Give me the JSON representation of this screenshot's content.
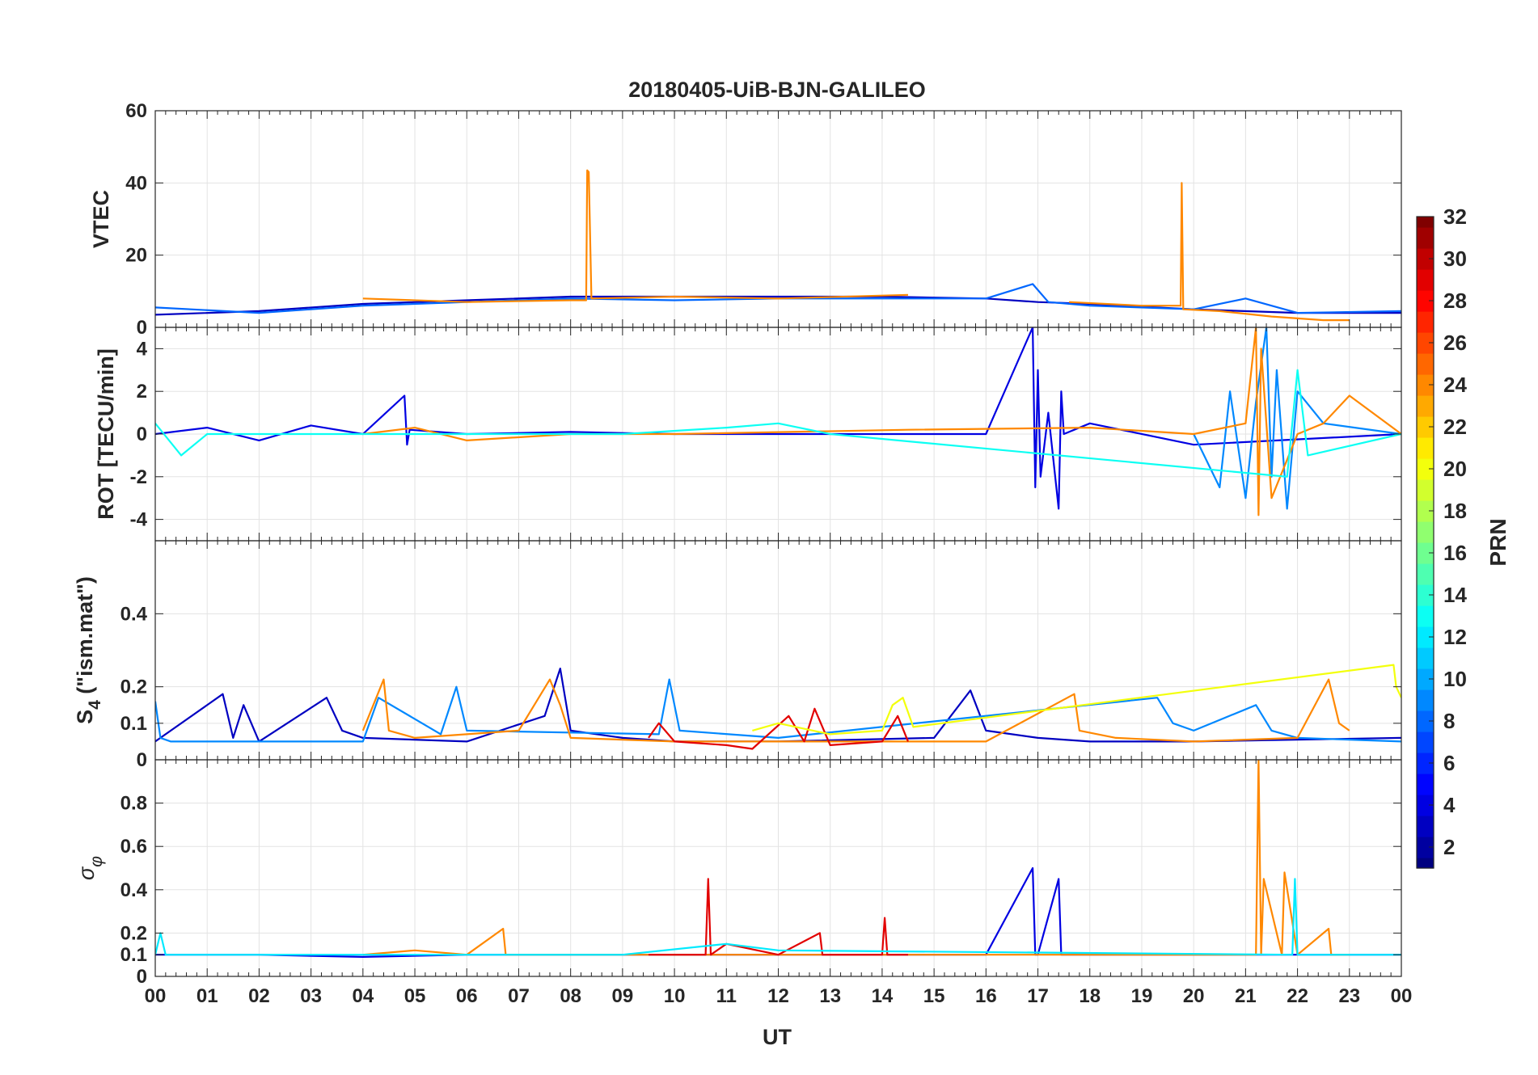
{
  "chart_data": {
    "type": "line",
    "title": "20180405-UiB-BJN-GALILEO",
    "xlabel": "UT",
    "x_tick_labels": [
      "00",
      "01",
      "02",
      "03",
      "04",
      "05",
      "06",
      "07",
      "08",
      "09",
      "10",
      "11",
      "12",
      "13",
      "14",
      "15",
      "16",
      "17",
      "18",
      "19",
      "20",
      "21",
      "22",
      "23",
      "00"
    ],
    "xlim": [
      0,
      24
    ],
    "grid": true,
    "colorbar": {
      "label": "PRN",
      "range": [
        1,
        32
      ],
      "colormap": "jet",
      "tick_labels": [
        "2",
        "4",
        "6",
        "8",
        "10",
        "12",
        "14",
        "16",
        "18",
        "20",
        "22",
        "24",
        "26",
        "28",
        "30",
        "32"
      ]
    },
    "panels": [
      {
        "id": "vtec",
        "ylabel": "VTEC",
        "ylim": [
          0,
          60
        ],
        "y_tick_labels": [
          "0",
          "20",
          "40",
          "60"
        ],
        "series": [
          {
            "prn": 3,
            "x": [
              0,
              2,
              4,
              6,
              8,
              10,
              12,
              14,
              16,
              17,
              18,
              20,
              22,
              24
            ],
            "y": [
              3.5,
              4.5,
              6.5,
              7.5,
              8.5,
              8.5,
              8.5,
              8.5,
              8,
              7,
              6.5,
              5,
              4,
              4
            ]
          },
          {
            "prn": 8,
            "x": [
              0,
              2,
              4,
              6,
              8,
              10,
              12,
              14,
              16,
              16.9,
              17.2,
              18,
              20,
              21,
              22,
              24
            ],
            "y": [
              5.5,
              4,
              6,
              7,
              8,
              7.5,
              8,
              8,
              8,
              12,
              7,
              6,
              5,
              8,
              4,
              4.5
            ]
          },
          {
            "prn": 24,
            "x": [
              4,
              6,
              8,
              8.3,
              8.32,
              8.35,
              8.4,
              10,
              12,
              14.5
            ],
            "y": [
              8,
              7,
              7.5,
              7.5,
              43.5,
              43,
              8,
              8.5,
              8,
              9
            ]
          },
          {
            "prn": 24,
            "x": [
              17.6,
              19,
              19.75,
              19.77,
              19.8,
              20.5,
              21.5,
              22.5,
              23
            ],
            "y": [
              7,
              6,
              6,
              40,
              5,
              4.5,
              3,
              2,
              2
            ]
          }
        ]
      },
      {
        "id": "rot",
        "ylabel": "ROT [TECU/min]",
        "ylim": [
          -5,
          5
        ],
        "y_tick_labels": [
          "-4",
          "-2",
          "0",
          "2",
          "4"
        ],
        "series": [
          {
            "prn": 4,
            "x": [
              0,
              1,
              2,
              3,
              4,
              4.8,
              4.85,
              4.9,
              6,
              8,
              10,
              12,
              14,
              16,
              16.9,
              16.95,
              17.0,
              17.05,
              17.2,
              17.4,
              17.45,
              17.5,
              18,
              20,
              24
            ],
            "y": [
              0,
              0.3,
              -0.3,
              0.4,
              0,
              1.8,
              -0.5,
              0.2,
              0,
              0.1,
              0,
              0,
              0,
              0,
              5,
              -2.5,
              3,
              -2,
              1,
              -3.5,
              2,
              0,
              0.5,
              -0.5,
              0
            ]
          },
          {
            "prn": 9,
            "x": [
              20,
              20.5,
              20.7,
              21,
              21.2,
              21.4,
              21.5,
              21.6,
              21.8,
              22,
              22.5,
              24
            ],
            "y": [
              0,
              -2.5,
              2,
              -3,
              1.5,
              5,
              -2,
              3,
              -3.5,
              2,
              0.5,
              0
            ]
          },
          {
            "prn": 24,
            "x": [
              4,
              5,
              6,
              8,
              10,
              14.5,
              18,
              20,
              21,
              21.2,
              21.25,
              21.3,
              21.4,
              21.5,
              22,
              22.5,
              23,
              24
            ],
            "y": [
              0,
              0.3,
              -0.3,
              0,
              0,
              0.2,
              0.3,
              0,
              0.5,
              5,
              -3.8,
              4,
              0.5,
              -3,
              0,
              0.5,
              1.8,
              0
            ]
          },
          {
            "prn": 13,
            "x": [
              0,
              0.5,
              1,
              9,
              11,
              12,
              13,
              21.8,
              22,
              22.2,
              24
            ],
            "y": [
              0.5,
              -1,
              0,
              0,
              0.3,
              0.5,
              0,
              -2,
              3,
              -1,
              0
            ]
          }
        ]
      },
      {
        "id": "s4",
        "ylabel": "S4 (\"ism.mat\")",
        "ylabel_main": "S",
        "ylabel_sub": "4",
        "ylabel_rest": " (\"ism.mat\")",
        "ylim": [
          0,
          0.6
        ],
        "y_tick_labels": [
          "0",
          "0.1",
          "0.2",
          "0.4"
        ],
        "series": [
          {
            "prn": 3,
            "x": [
              0,
              1.3,
              1.5,
              1.7,
              2,
              3.3,
              3.6,
              4,
              6,
              7.5,
              7.8,
              8,
              9,
              10,
              12,
              15,
              15.7,
              16,
              17,
              18,
              20,
              24
            ],
            "y": [
              0.05,
              0.18,
              0.06,
              0.15,
              0.05,
              0.17,
              0.08,
              0.06,
              0.05,
              0.12,
              0.25,
              0.08,
              0.06,
              0.05,
              0.05,
              0.06,
              0.19,
              0.08,
              0.06,
              0.05,
              0.05,
              0.06
            ]
          },
          {
            "prn": 9,
            "x": [
              0,
              0.1,
              0.3,
              2,
              4,
              4.3,
              5.5,
              5.8,
              6,
              9.7,
              9.9,
              10.1,
              12,
              19.3,
              19.6,
              20,
              21.2,
              21.5,
              22,
              24
            ],
            "y": [
              0.16,
              0.06,
              0.05,
              0.05,
              0.05,
              0.17,
              0.07,
              0.2,
              0.08,
              0.07,
              0.22,
              0.08,
              0.06,
              0.17,
              0.1,
              0.08,
              0.15,
              0.08,
              0.06,
              0.05
            ]
          },
          {
            "prn": 24,
            "x": [
              4,
              4.4,
              4.5,
              5,
              7,
              7.6,
              7.8,
              8,
              10,
              16,
              17.7,
              17.8,
              18.5,
              20,
              22,
              22.6,
              22.8,
              23
            ],
            "y": [
              0.08,
              0.22,
              0.08,
              0.06,
              0.08,
              0.22,
              0.15,
              0.06,
              0.05,
              0.05,
              0.18,
              0.08,
              0.06,
              0.05,
              0.06,
              0.22,
              0.1,
              0.08
            ]
          },
          {
            "prn": 29,
            "x": [
              9.5,
              9.7,
              10,
              11,
              11.5,
              12.2,
              12.5,
              12.7,
              13,
              14,
              14.3,
              14.5
            ],
            "y": [
              0.06,
              0.1,
              0.05,
              0.04,
              0.03,
              0.12,
              0.05,
              0.14,
              0.04,
              0.05,
              0.12,
              0.05
            ]
          },
          {
            "prn": 20,
            "x": [
              11.5,
              12,
              13,
              14,
              14.2,
              14.4,
              14.6,
              23.85,
              23.9,
              24
            ],
            "y": [
              0.08,
              0.1,
              0.07,
              0.08,
              0.15,
              0.17,
              0.09,
              0.26,
              0.2,
              0.17
            ]
          }
        ]
      },
      {
        "id": "sigma",
        "ylabel": "σφ",
        "ylabel_main": "σ",
        "ylabel_sub": "φ",
        "ylim": [
          0,
          1
        ],
        "y_tick_labels": [
          "0",
          "0.1",
          "0.2",
          "0.4",
          "0.6",
          "0.8"
        ],
        "series": [
          {
            "prn": 4,
            "x": [
              0,
              2,
              4,
              6,
              8,
              10,
              12,
              14,
              16,
              16.9,
              16.95,
              17.0,
              17.4,
              17.45,
              17.5,
              18,
              20,
              24
            ],
            "y": [
              0.1,
              0.1,
              0.09,
              0.1,
              0.1,
              0.1,
              0.1,
              0.1,
              0.1,
              0.5,
              0.1,
              0.1,
              0.45,
              0.1,
              0.1,
              0.1,
              0.1,
              0.1
            ]
          },
          {
            "prn": 24,
            "x": [
              4,
              5,
              6,
              6.7,
              6.75,
              8,
              10,
              16,
              18,
              20,
              21.2,
              21.25,
              21.3,
              21.35,
              21.7,
              21.75,
              22,
              22.6,
              22.65,
              23
            ],
            "y": [
              0.1,
              0.12,
              0.1,
              0.22,
              0.1,
              0.1,
              0.1,
              0.1,
              0.1,
              0.1,
              0.1,
              1.0,
              0.1,
              0.45,
              0.1,
              0.48,
              0.1,
              0.22,
              0.1,
              0.1
            ]
          },
          {
            "prn": 29,
            "x": [
              9.5,
              10,
              10.6,
              10.65,
              10.7,
              11,
              12,
              12.8,
              12.85,
              13,
              14,
              14.05,
              14.1,
              14.5
            ],
            "y": [
              0.1,
              0.1,
              0.1,
              0.45,
              0.1,
              0.15,
              0.1,
              0.2,
              0.1,
              0.1,
              0.1,
              0.27,
              0.1,
              0.1
            ]
          },
          {
            "prn": 12,
            "x": [
              0,
              0.1,
              0.2,
              9,
              11,
              12,
              21.9,
              21.95,
              22,
              24
            ],
            "y": [
              0.1,
              0.2,
              0.1,
              0.1,
              0.15,
              0.12,
              0.1,
              0.45,
              0.1,
              0.1
            ]
          }
        ]
      }
    ]
  }
}
